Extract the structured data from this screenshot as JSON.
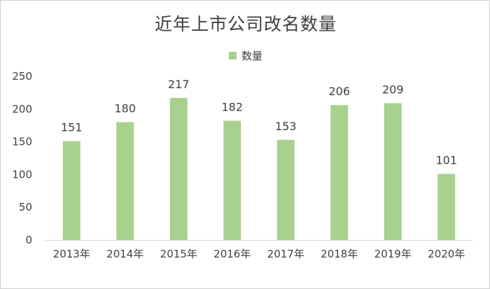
{
  "chart_data": {
    "type": "bar",
    "title": "近年上市公司改名数量",
    "categories": [
      "2013年",
      "2014年",
      "2015年",
      "2016年",
      "2017年",
      "2018年",
      "2019年",
      "2020年"
    ],
    "series": [
      {
        "name": "数量",
        "values": [
          151,
          180,
          217,
          182,
          153,
          206,
          209,
          101
        ],
        "color": "#a9d18e"
      }
    ],
    "yticks": [
      0,
      50,
      100,
      150,
      200,
      250
    ],
    "ylim": [
      0,
      250
    ],
    "grid": false,
    "legend_position": "top-center",
    "data_labels": true,
    "colors": {
      "bar": "#a9d18e",
      "text": "#404040",
      "axis": "#d9d9d9"
    }
  }
}
